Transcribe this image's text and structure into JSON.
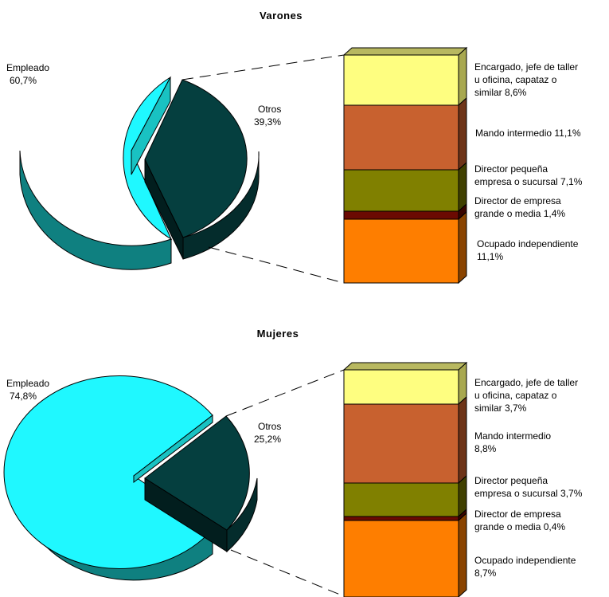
{
  "colors": {
    "empleado": "#1ff8ff",
    "otros": "#053f3f",
    "encargado": "#fefe80",
    "mando": "#c8612f",
    "director_pequena": "#808000",
    "director_grande": "#6b0a02",
    "independiente": "#fe7e00"
  },
  "chart_data": [
    {
      "type": "pie",
      "title": "Varones",
      "pie": [
        {
          "label": "Empleado",
          "value": 60.7,
          "value_label": "60,7%",
          "color": "#1ff8ff"
        },
        {
          "label": "Otros",
          "value": 39.3,
          "value_label": "39,3%",
          "color": "#053f3f"
        }
      ],
      "breakdown": {
        "type": "stacked_bar",
        "of": "Otros",
        "segments": [
          {
            "line1": "Encargado, jefe de taller",
            "line2": "u oficina, capataz o",
            "line3": "similar  8,6%",
            "value": 8.6,
            "color": "#fefe80"
          },
          {
            "line1": "Mando intermedio  11,1%",
            "value": 11.1,
            "color": "#c8612f"
          },
          {
            "line1": "Director pequeña",
            "line2": "empresa o sucursal 7,1%",
            "value": 7.1,
            "color": "#808000"
          },
          {
            "line1": "Director de empresa",
            "line2": "grande o media 1,4%",
            "value": 1.4,
            "color": "#6b0a02"
          },
          {
            "line1": "Ocupado independiente",
            "line2": "11,1%",
            "value": 11.1,
            "color": "#fe7e00"
          }
        ]
      }
    },
    {
      "type": "pie",
      "title": "Mujeres",
      "pie": [
        {
          "label": "Empleado",
          "value": 74.8,
          "value_label": "74,8%",
          "color": "#1ff8ff"
        },
        {
          "label": "Otros",
          "value": 25.2,
          "value_label": "25,2%",
          "color": "#053f3f"
        }
      ],
      "breakdown": {
        "type": "stacked_bar",
        "of": "Otros",
        "segments": [
          {
            "line1": "Encargado, jefe de taller",
            "line2": "u oficina, capataz o",
            "line3": "similar  3,7%",
            "value": 3.7,
            "color": "#fefe80"
          },
          {
            "line1": "Mando intermedio",
            "line2": "8,8%",
            "value": 8.8,
            "color": "#c8612f"
          },
          {
            "line1": "Director pequeña",
            "line2": "empresa o sucursal 3,7%",
            "value": 3.7,
            "color": "#808000"
          },
          {
            "line1": "Director de empresa",
            "line2": "grande o media 0,4%",
            "value": 0.4,
            "color": "#6b0a02"
          },
          {
            "line1": "Ocupado independiente",
            "line2": "8,7%",
            "value": 8.7,
            "color": "#fe7e00"
          }
        ]
      }
    }
  ]
}
